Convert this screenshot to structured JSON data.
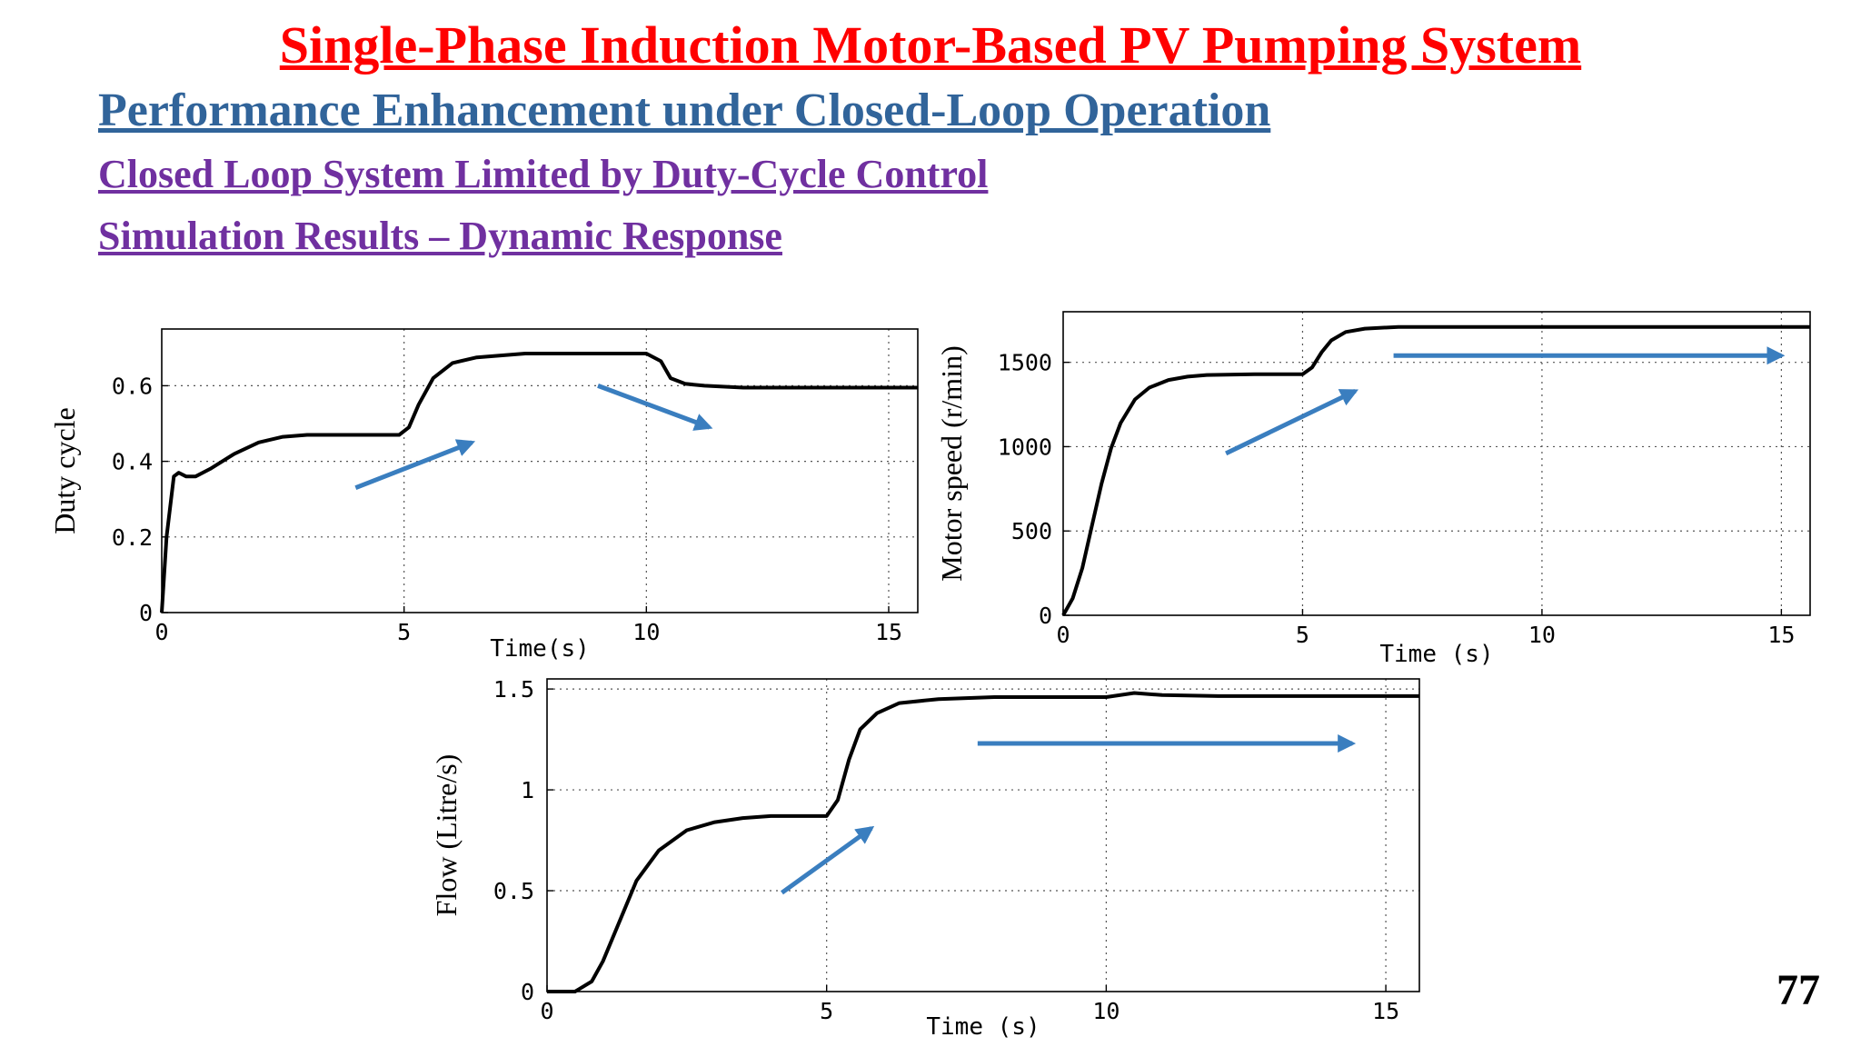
{
  "slide": {
    "title": "Single-Phase Induction Motor-Based PV Pumping System",
    "subtitle1": "Performance Enhancement under Closed-Loop Operation",
    "subtitle2": "Closed Loop System Limited by Duty-Cycle Control",
    "subtitle3": "Simulation Results – Dynamic Response",
    "page_number": "77"
  },
  "colors": {
    "title": "#ff0000",
    "subtitle1": "#31649a",
    "subtitle2": "#7030a0",
    "arrow": "#3a7ebf",
    "trace": "#000000"
  },
  "chart_data": [
    {
      "type": "line",
      "xlabel": "Time(s)",
      "ylabel": "Duty cycle",
      "xlim": [
        0,
        15.6
      ],
      "ylim": [
        0,
        0.75
      ],
      "xticks": [
        "0",
        "5",
        "10",
        "15"
      ],
      "xtick_values": [
        0,
        5,
        10,
        15
      ],
      "yticks": [
        "0",
        "0.2",
        "0.4",
        "0.6"
      ],
      "ytick_values": [
        0,
        0.2,
        0.4,
        0.6
      ],
      "grid": true,
      "series": [
        {
          "x": [
            0,
            0.1,
            0.25,
            0.35,
            0.5,
            0.7,
            1,
            1.5,
            2,
            2.5,
            3,
            4,
            4.9,
            5.1,
            5.3,
            5.6,
            6,
            6.5,
            7,
            7.5,
            8,
            9,
            10,
            10.3,
            10.5,
            10.8,
            11.2,
            12,
            13,
            14,
            15,
            15.6
          ],
          "y": [
            0,
            0.2,
            0.36,
            0.37,
            0.36,
            0.36,
            0.38,
            0.42,
            0.45,
            0.465,
            0.47,
            0.47,
            0.47,
            0.49,
            0.55,
            0.62,
            0.66,
            0.675,
            0.68,
            0.685,
            0.685,
            0.685,
            0.685,
            0.665,
            0.62,
            0.605,
            0.6,
            0.595,
            0.595,
            0.595,
            0.595,
            0.595
          ]
        }
      ],
      "annotations": [
        {
          "kind": "arrow",
          "from": [
            4,
            0.33
          ],
          "to": [
            6.4,
            0.45
          ]
        },
        {
          "kind": "arrow",
          "from": [
            9,
            0.6
          ],
          "to": [
            11.3,
            0.49
          ]
        }
      ]
    },
    {
      "type": "line",
      "xlabel": "Time (s)",
      "ylabel": "Motor speed (r/min)",
      "xlim": [
        0,
        15.6
      ],
      "ylim": [
        0,
        1800
      ],
      "xticks": [
        "0",
        "5",
        "10",
        "15"
      ],
      "xtick_values": [
        0,
        5,
        10,
        15
      ],
      "yticks": [
        "0",
        "500",
        "1000",
        "1500"
      ],
      "ytick_values": [
        0,
        500,
        1000,
        1500
      ],
      "grid": true,
      "series": [
        {
          "x": [
            0,
            0.2,
            0.4,
            0.6,
            0.8,
            1,
            1.2,
            1.5,
            1.8,
            2.2,
            2.6,
            3,
            4,
            5,
            5.2,
            5.4,
            5.6,
            5.9,
            6.3,
            7,
            8,
            10,
            12,
            15.6
          ],
          "y": [
            0,
            100,
            280,
            530,
            780,
            990,
            1140,
            1280,
            1350,
            1395,
            1415,
            1425,
            1430,
            1430,
            1470,
            1560,
            1630,
            1680,
            1700,
            1710,
            1710,
            1710,
            1710,
            1710
          ]
        }
      ],
      "annotations": [
        {
          "kind": "arrow",
          "from": [
            3.4,
            960
          ],
          "to": [
            6.1,
            1330
          ]
        },
        {
          "kind": "arrow",
          "from": [
            6.9,
            1540
          ],
          "to": [
            15,
            1540
          ]
        }
      ]
    },
    {
      "type": "line",
      "xlabel": "Time (s)",
      "ylabel": "Flow (Litre/s)",
      "xlim": [
        0,
        15.6
      ],
      "ylim": [
        0,
        1.55
      ],
      "xticks": [
        "0",
        "5",
        "10",
        "15"
      ],
      "xtick_values": [
        0,
        5,
        10,
        15
      ],
      "yticks": [
        "0",
        "0.5",
        "1",
        "1.5"
      ],
      "ytick_values": [
        0,
        0.5,
        1,
        1.5
      ],
      "grid": true,
      "series": [
        {
          "x": [
            0,
            0.5,
            0.8,
            1,
            1.3,
            1.6,
            2,
            2.5,
            3,
            3.5,
            4,
            5,
            5.2,
            5.4,
            5.6,
            5.9,
            6.3,
            7,
            8,
            9,
            10,
            10.5,
            11,
            12,
            15.6
          ],
          "y": [
            0,
            0,
            0.05,
            0.15,
            0.35,
            0.55,
            0.7,
            0.8,
            0.84,
            0.86,
            0.87,
            0.87,
            0.95,
            1.15,
            1.3,
            1.38,
            1.43,
            1.45,
            1.46,
            1.46,
            1.46,
            1.48,
            1.47,
            1.465,
            1.465
          ]
        }
      ],
      "annotations": [
        {
          "kind": "arrow",
          "from": [
            4.2,
            0.49
          ],
          "to": [
            5.8,
            0.81
          ]
        },
        {
          "kind": "arrow",
          "from": [
            7.7,
            1.23
          ],
          "to": [
            14.4,
            1.23
          ]
        }
      ]
    }
  ]
}
